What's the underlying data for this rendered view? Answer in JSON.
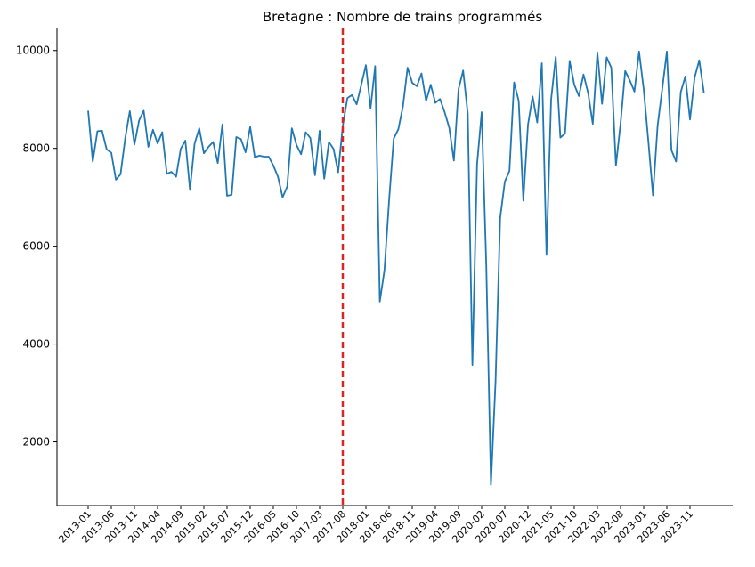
{
  "chart_data": {
    "type": "line",
    "title": "Bretagne : Nombre de trains programmés",
    "xlabel": "",
    "ylabel": "",
    "ylim": [
      700,
      10450
    ],
    "y_ticks": [
      2000,
      4000,
      6000,
      8000,
      10000
    ],
    "y_tick_labels": [
      "2000",
      "4000",
      "6000",
      "8000",
      "10000"
    ],
    "x_tick_labels": [
      "2013-01",
      "2013-06",
      "2013-11",
      "2014-04",
      "2014-09",
      "2015-02",
      "2015-07",
      "2015-12",
      "2016-05",
      "2016-10",
      "2017-03",
      "2017-08",
      "2018-01",
      "2018-06",
      "2018-11",
      "2019-04",
      "2019-09",
      "2020-02",
      "2020-07",
      "2020-12",
      "2021-05",
      "2021-10",
      "2022-03",
      "2022-08",
      "2023-01",
      "2023-06",
      "2023-11"
    ],
    "x_tick_every": 5,
    "vline": {
      "at_index": 55,
      "color": "#d62728",
      "style": "dashed"
    },
    "grid": false,
    "line_color": "#1f77b4",
    "x": [
      "2013-01",
      "2013-02",
      "2013-03",
      "2013-04",
      "2013-05",
      "2013-06",
      "2013-07",
      "2013-08",
      "2013-09",
      "2013-10",
      "2013-11",
      "2013-12",
      "2014-01",
      "2014-02",
      "2014-03",
      "2014-04",
      "2014-05",
      "2014-06",
      "2014-07",
      "2014-08",
      "2014-09",
      "2014-10",
      "2014-11",
      "2014-12",
      "2015-01",
      "2015-02",
      "2015-03",
      "2015-04",
      "2015-05",
      "2015-06",
      "2015-07",
      "2015-08",
      "2015-09",
      "2015-10",
      "2015-11",
      "2015-12",
      "2016-01",
      "2016-02",
      "2016-03",
      "2016-04",
      "2016-05",
      "2016-06",
      "2016-07",
      "2016-08",
      "2016-09",
      "2016-10",
      "2016-11",
      "2016-12",
      "2017-01",
      "2017-02",
      "2017-03",
      "2017-04",
      "2017-05",
      "2017-06",
      "2017-07",
      "2017-08",
      "2017-09",
      "2017-10",
      "2017-11",
      "2017-12",
      "2018-01",
      "2018-02",
      "2018-03",
      "2018-04",
      "2018-05",
      "2018-06",
      "2018-07",
      "2018-08",
      "2018-09",
      "2018-10",
      "2018-11",
      "2018-12",
      "2019-01",
      "2019-02",
      "2019-03",
      "2019-04",
      "2019-05",
      "2019-06",
      "2019-07",
      "2019-08",
      "2019-09",
      "2019-10",
      "2019-11",
      "2019-12",
      "2020-01",
      "2020-02",
      "2020-03",
      "2020-04",
      "2020-05",
      "2020-06",
      "2020-07",
      "2020-08",
      "2020-09",
      "2020-10",
      "2020-11",
      "2020-12",
      "2021-01",
      "2021-02",
      "2021-03",
      "2021-04",
      "2021-05",
      "2021-06",
      "2021-07",
      "2021-08",
      "2021-09",
      "2021-10",
      "2021-11",
      "2021-12",
      "2022-01",
      "2022-02",
      "2022-03",
      "2022-04",
      "2022-05",
      "2022-06",
      "2022-07",
      "2022-08",
      "2022-09",
      "2022-10",
      "2022-11",
      "2022-12",
      "2023-01",
      "2023-02",
      "2023-03",
      "2023-04",
      "2023-05",
      "2023-06",
      "2023-07",
      "2023-08",
      "2023-09",
      "2023-10",
      "2023-11",
      "2023-12",
      "2024-01",
      "2024-02"
    ],
    "values": [
      8770,
      7730,
      8350,
      8360,
      7980,
      7910,
      7360,
      7470,
      8200,
      8760,
      8080,
      8570,
      8770,
      8030,
      8380,
      8100,
      8330,
      7480,
      7520,
      7420,
      7990,
      8160,
      7150,
      8100,
      8410,
      7900,
      8030,
      8130,
      7700,
      8490,
      7030,
      7050,
      8230,
      8190,
      7920,
      8440,
      7820,
      7850,
      7830,
      7830,
      7650,
      7420,
      7000,
      7220,
      8410,
      8070,
      7880,
      8330,
      8210,
      7450,
      8360,
      7380,
      8130,
      7990,
      7510,
      8460,
      9030,
      9090,
      8900,
      9300,
      9700,
      8820,
      9680,
      4870,
      5510,
      6930,
      8200,
      8390,
      8860,
      9650,
      9340,
      9270,
      9530,
      8970,
      9300,
      8930,
      9010,
      8740,
      8420,
      7750,
      9210,
      9590,
      8710,
      3570,
      7670,
      8740,
      5600,
      1120,
      3240,
      6580,
      7320,
      7540,
      9350,
      8970,
      6930,
      8480,
      9060,
      8530,
      9740,
      5820,
      9000,
      9870,
      8220,
      8300,
      9790,
      9300,
      9070,
      9510,
      9130,
      8500,
      9960,
      8910,
      9860,
      9650,
      7650,
      8510,
      9580,
      9390,
      9160,
      9980,
      9210,
      8150,
      7040,
      8460,
      9210,
      9980,
      7960,
      7730,
      9150,
      9470,
      8590,
      9450,
      9800,
      9140
    ]
  }
}
